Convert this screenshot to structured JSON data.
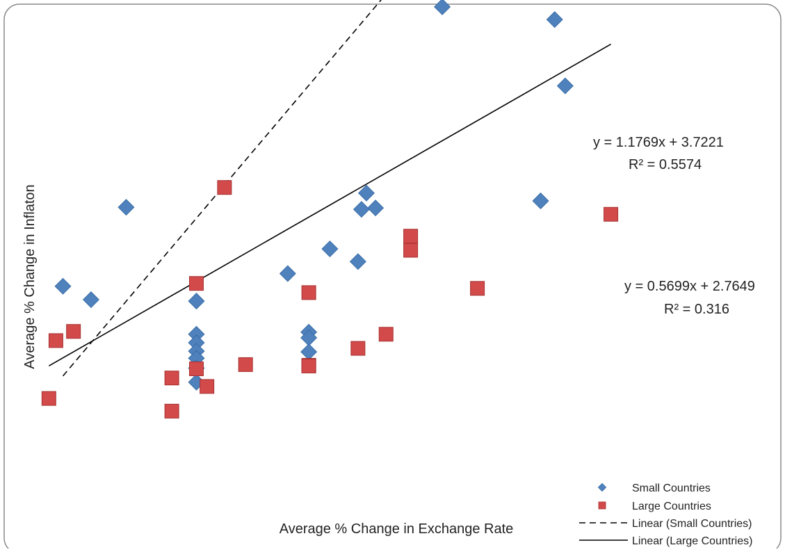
{
  "chart_data": {
    "type": "scatter",
    "title": "",
    "xlabel": "Average % Change in Exchange Rate",
    "ylabel": "Average % Change in Inflaton",
    "xlim": [
      -2.5,
      7.2
    ],
    "ylim": [
      -0.2,
      6.5
    ],
    "grid": false,
    "legend_position": "bottom-right",
    "series": [
      {
        "name": "Small Countries",
        "marker": "diamond",
        "color": "#4F81BD",
        "points": [
          [
            -2.0,
            2.64
          ],
          [
            -0.1,
            2.43
          ],
          [
            -0.1,
            1.96
          ],
          [
            -0.1,
            1.84
          ],
          [
            -0.1,
            1.72
          ],
          [
            -0.1,
            1.62
          ],
          [
            -0.1,
            1.48
          ],
          [
            -0.1,
            1.28
          ],
          [
            1.5,
            1.99
          ],
          [
            1.5,
            1.91
          ],
          [
            1.5,
            1.71
          ],
          [
            1.2,
            2.82
          ],
          [
            1.8,
            3.17
          ],
          [
            2.2,
            2.99
          ],
          [
            2.25,
            3.73
          ],
          [
            2.32,
            3.96
          ],
          [
            2.45,
            3.75
          ],
          [
            3.4,
            6.6
          ],
          [
            4.8,
            3.85
          ],
          [
            5.0,
            6.42
          ],
          [
            5.15,
            5.48
          ],
          [
            -1.6,
            2.45
          ],
          [
            -1.1,
            3.76
          ]
        ]
      },
      {
        "name": "Large Countries",
        "marker": "square",
        "color": "#D24A4A",
        "points": [
          [
            -2.2,
            1.05
          ],
          [
            -2.1,
            1.87
          ],
          [
            -1.85,
            2.0
          ],
          [
            -0.45,
            1.34
          ],
          [
            -0.45,
            0.87
          ],
          [
            -0.1,
            2.68
          ],
          [
            -0.1,
            1.47
          ],
          [
            0.05,
            1.22
          ],
          [
            0.3,
            4.04
          ],
          [
            0.6,
            1.53
          ],
          [
            1.5,
            2.55
          ],
          [
            1.5,
            1.52
          ],
          [
            1.5,
            1.51
          ],
          [
            2.2,
            1.76
          ],
          [
            2.6,
            1.96
          ],
          [
            2.95,
            3.35
          ],
          [
            2.95,
            3.15
          ],
          [
            3.9,
            2.61
          ],
          [
            5.8,
            3.66
          ]
        ]
      },
      {
        "name": "Linear (Small Countries)",
        "kind": "trendline",
        "style": "dashed",
        "slope": 1.1769,
        "intercept": 3.7221,
        "x": [
          -2.0,
          5.2
        ]
      },
      {
        "name": "Linear (Large Countries)",
        "kind": "trendline",
        "style": "solid",
        "slope": 0.5699,
        "intercept": 2.7649,
        "x": [
          -2.2,
          5.8
        ]
      }
    ],
    "annotations": [
      {
        "for": "Small Countries",
        "equation": "y = 1.1769x + 3.7221",
        "r2": "R² = 0.5574"
      },
      {
        "for": "Large Countries",
        "equation": "y = 0.5699x + 2.7649",
        "r2": "R² = 0.316"
      }
    ]
  }
}
